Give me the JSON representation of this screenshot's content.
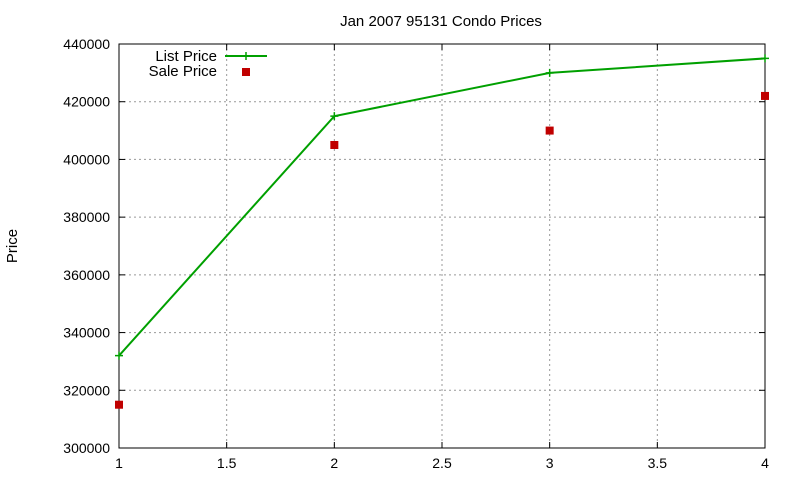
{
  "chart_data": {
    "type": "line",
    "title": "Jan 2007 95131 Condo Prices",
    "xlabel": "",
    "ylabel": "Price",
    "xlim": [
      1,
      4
    ],
    "ylim": [
      300000,
      440000
    ],
    "xticks": [
      "1",
      "1.5",
      "2",
      "2.5",
      "3",
      "3.5",
      "4"
    ],
    "yticks": [
      "300000",
      "320000",
      "340000",
      "360000",
      "380000",
      "400000",
      "420000",
      "440000"
    ],
    "grid": true,
    "legend_position": "top-left",
    "series": [
      {
        "name": "List Price",
        "style": "line-with-plus-markers",
        "color": "#00a000",
        "x": [
          1,
          2,
          3,
          4
        ],
        "y": [
          332000,
          415000,
          430000,
          435000
        ]
      },
      {
        "name": "Sale Price",
        "style": "square-markers",
        "color": "#c00000",
        "x": [
          1,
          2,
          3,
          4
        ],
        "y": [
          315000,
          405000,
          410000,
          422000
        ]
      }
    ]
  }
}
